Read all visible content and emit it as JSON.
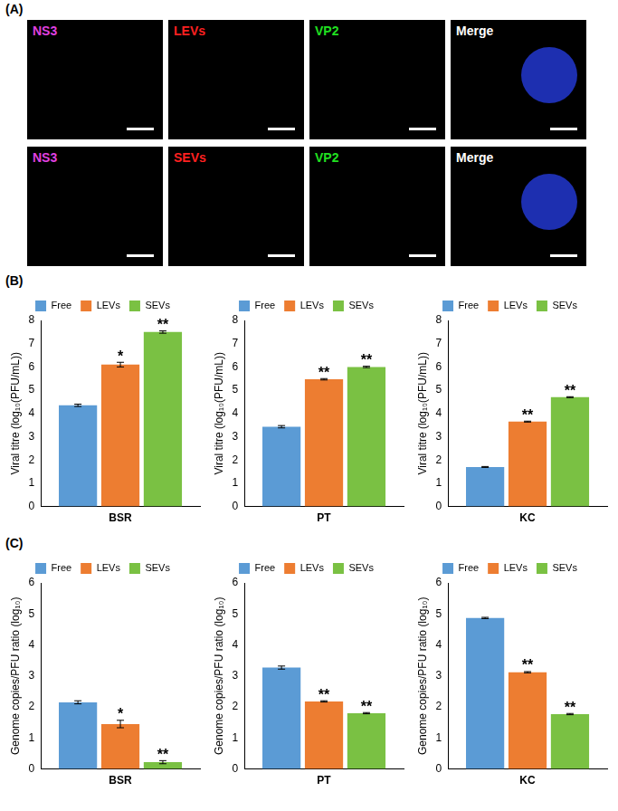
{
  "panel_letters": [
    "(A)",
    "(B)",
    "(C)"
  ],
  "images": {
    "rows": [
      [
        {
          "text": "NS3",
          "color": "#e040e0"
        },
        {
          "text": "LEVs",
          "color": "#ff2020"
        },
        {
          "text": "VP2",
          "color": "#20e020"
        },
        {
          "text": "Merge",
          "color": "#ffffff"
        }
      ],
      [
        {
          "text": "NS3",
          "color": "#e040e0"
        },
        {
          "text": "SEVs",
          "color": "#ff2020"
        },
        {
          "text": "VP2",
          "color": "#20e020"
        },
        {
          "text": "Merge",
          "color": "#ffffff"
        }
      ]
    ]
  },
  "chart_data": [
    {
      "type": "bar",
      "panel": "(B)",
      "categories": [
        "BSR"
      ],
      "y_label": "Viral titre (log₁₀(PFU/mL))",
      "ylim": [
        0,
        8
      ],
      "yticks": [
        0,
        1,
        2,
        3,
        4,
        5,
        6,
        7,
        8
      ],
      "grid": false,
      "legend": "top",
      "series": [
        {
          "name": "Free",
          "color": "#5b9bd5",
          "values": [
            4.35
          ],
          "errors": [
            0.05
          ],
          "significance": [
            null
          ]
        },
        {
          "name": "LEVs",
          "color": "#ed7d31",
          "values": [
            6.1
          ],
          "errors": [
            0.1
          ],
          "significance": [
            "*"
          ]
        },
        {
          "name": "SEVs",
          "color": "#7ac143",
          "values": [
            7.5
          ],
          "errors": [
            0.05
          ],
          "significance": [
            "**"
          ]
        }
      ]
    },
    {
      "type": "bar",
      "panel": "(B)",
      "categories": [
        "PT"
      ],
      "y_label": "Viral titre (log₁₀(PFU/mL))",
      "ylim": [
        0,
        8
      ],
      "yticks": [
        0,
        1,
        2,
        3,
        4,
        5,
        6,
        7,
        8
      ],
      "grid": false,
      "legend": "top",
      "series": [
        {
          "name": "Free",
          "color": "#5b9bd5",
          "values": [
            3.43
          ],
          "errors": [
            0.05
          ],
          "significance": [
            null
          ]
        },
        {
          "name": "LEVs",
          "color": "#ed7d31",
          "values": [
            5.47
          ],
          "errors": [
            0.03
          ],
          "significance": [
            "**"
          ]
        },
        {
          "name": "SEVs",
          "color": "#7ac143",
          "values": [
            6.0
          ],
          "errors": [
            0.03
          ],
          "significance": [
            "**"
          ]
        }
      ]
    },
    {
      "type": "bar",
      "panel": "(B)",
      "categories": [
        "KC"
      ],
      "y_label": "Viral titre (log₁₀(PFU/mL))",
      "ylim": [
        0,
        8
      ],
      "yticks": [
        0,
        1,
        2,
        3,
        4,
        5,
        6,
        7,
        8
      ],
      "grid": false,
      "legend": "top",
      "series": [
        {
          "name": "Free",
          "color": "#5b9bd5",
          "values": [
            1.7
          ],
          "errors": [
            0.02
          ],
          "significance": [
            null
          ]
        },
        {
          "name": "LEVs",
          "color": "#ed7d31",
          "values": [
            3.65
          ],
          "errors": [
            0.02
          ],
          "significance": [
            "**"
          ]
        },
        {
          "name": "SEVs",
          "color": "#7ac143",
          "values": [
            4.7
          ],
          "errors": [
            0.02
          ],
          "significance": [
            "**"
          ]
        }
      ]
    },
    {
      "type": "bar",
      "panel": "(C)",
      "categories": [
        "BSR"
      ],
      "y_label": "Genome copies/PFU ratio (log₁₀)",
      "ylim": [
        0,
        6
      ],
      "yticks": [
        0,
        1,
        2,
        3,
        4,
        5,
        6
      ],
      "grid": false,
      "legend": "top",
      "series": [
        {
          "name": "Free",
          "color": "#5b9bd5",
          "values": [
            2.15
          ],
          "errors": [
            0.05
          ],
          "significance": [
            null
          ]
        },
        {
          "name": "LEVs",
          "color": "#ed7d31",
          "values": [
            1.45
          ],
          "errors": [
            0.12
          ],
          "significance": [
            "*"
          ]
        },
        {
          "name": "SEVs",
          "color": "#7ac143",
          "values": [
            0.22
          ],
          "errors": [
            0.05
          ],
          "significance": [
            "**"
          ]
        }
      ]
    },
    {
      "type": "bar",
      "panel": "(C)",
      "categories": [
        "PT"
      ],
      "y_label": "Genome copies/PFU ratio (log₁₀)",
      "ylim": [
        0,
        6
      ],
      "yticks": [
        0,
        1,
        2,
        3,
        4,
        5,
        6
      ],
      "grid": false,
      "legend": "top",
      "series": [
        {
          "name": "Free",
          "color": "#5b9bd5",
          "values": [
            3.27
          ],
          "errors": [
            0.05
          ],
          "significance": [
            null
          ]
        },
        {
          "name": "LEVs",
          "color": "#ed7d31",
          "values": [
            2.18
          ],
          "errors": [
            0.02
          ],
          "significance": [
            "**"
          ]
        },
        {
          "name": "SEVs",
          "color": "#7ac143",
          "values": [
            1.8
          ],
          "errors": [
            0.02
          ],
          "significance": [
            "**"
          ]
        }
      ]
    },
    {
      "type": "bar",
      "panel": "(C)",
      "categories": [
        "KC"
      ],
      "y_label": "Genome copies/PFU ratio (log₁₀)",
      "ylim": [
        0,
        6
      ],
      "yticks": [
        0,
        1,
        2,
        3,
        4,
        5,
        6
      ],
      "grid": false,
      "legend": "top",
      "series": [
        {
          "name": "Free",
          "color": "#5b9bd5",
          "values": [
            4.87
          ],
          "errors": [
            0.02
          ],
          "significance": [
            null
          ]
        },
        {
          "name": "LEVs",
          "color": "#ed7d31",
          "values": [
            3.12
          ],
          "errors": [
            0.02
          ],
          "significance": [
            "**"
          ]
        },
        {
          "name": "SEVs",
          "color": "#7ac143",
          "values": [
            1.77
          ],
          "errors": [
            0.02
          ],
          "significance": [
            "**"
          ]
        }
      ]
    }
  ]
}
